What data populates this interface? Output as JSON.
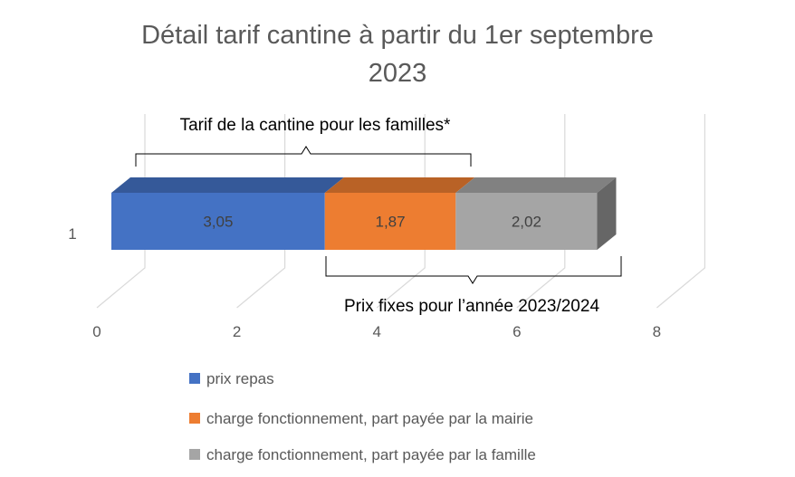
{
  "chart_data": {
    "type": "bar",
    "orientation": "horizontal",
    "stacked": true,
    "style": "3d",
    "title": "Détail tarif cantine à partir du 1er septembre 2023",
    "title_lines": [
      "Détail tarif cantine à partir du 1er septembre",
      "2023"
    ],
    "categories": [
      "1"
    ],
    "series": [
      {
        "name": "prix repas",
        "values": [
          3.05
        ],
        "label": "3,05",
        "color": "#4472C4"
      },
      {
        "name": "charge fonctionnement, part payée par la mairie",
        "values": [
          1.87
        ],
        "label": "1,87",
        "color": "#ED7D31"
      },
      {
        "name": "charge fonctionnement, part payée par la famille",
        "values": [
          2.02
        ],
        "label": "2,02",
        "color": "#A5A5A5"
      }
    ],
    "x_ticks": [
      "0",
      "2",
      "4",
      "6",
      "8"
    ],
    "xlim": [
      0,
      8
    ],
    "grid": true,
    "legend_position": "bottom",
    "annotations": {
      "top_brace": "Tarif de la cantine pour les familles*",
      "bottom_brace": "Prix fixes pour l’année 2023/2024"
    }
  }
}
